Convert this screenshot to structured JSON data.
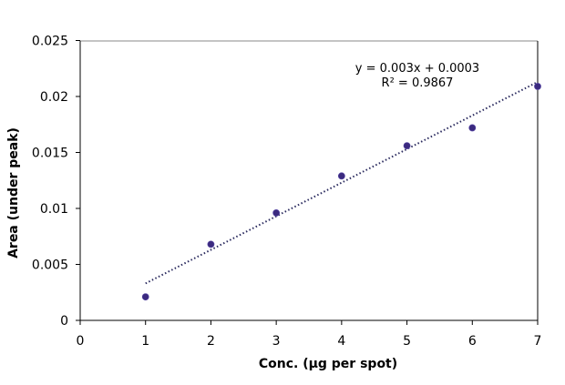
{
  "chart_data": {
    "type": "scatter",
    "title": "",
    "xlabel": "Conc. (µg per spot)",
    "ylabel": "Area (under peak)",
    "xlim": [
      0,
      7
    ],
    "ylim": [
      0,
      0.025
    ],
    "x_ticks": [
      "0",
      "1",
      "2",
      "3",
      "4",
      "5",
      "6",
      "7"
    ],
    "y_ticks": [
      "0",
      "0.005",
      "0.01",
      "0.015",
      "0.02",
      "0.025"
    ],
    "grid": false,
    "legend": null,
    "series": [
      {
        "name": "Area",
        "x": [
          1,
          2,
          3,
          4,
          5,
          6,
          7
        ],
        "y": [
          0.0021,
          0.0068,
          0.0096,
          0.0129,
          0.0156,
          0.0172,
          0.0209
        ],
        "marker_color": "#3b2a7f"
      }
    ],
    "trendline": {
      "type": "linear",
      "slope": 0.003,
      "intercept": 0.0003,
      "x_range": [
        1,
        7
      ],
      "style": "dotted",
      "color": "#2a2a5e"
    },
    "annotations": [
      "y = 0.003x + 0.0003",
      "R² = 0.9867"
    ]
  }
}
